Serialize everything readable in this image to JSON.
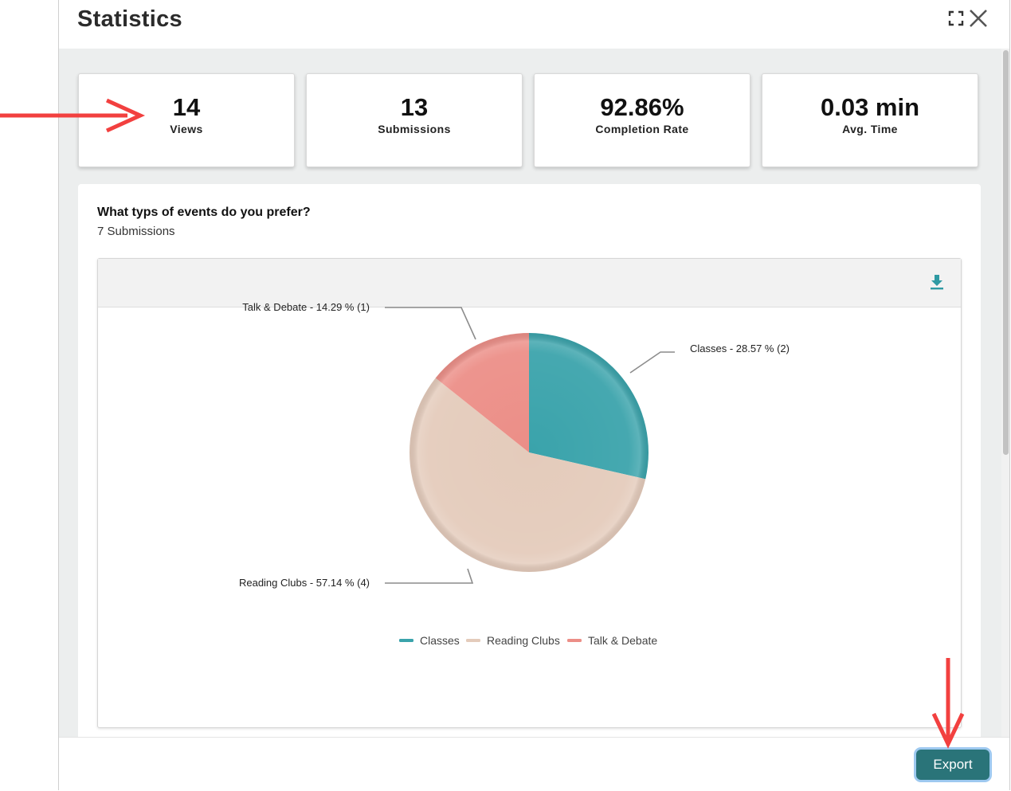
{
  "modal": {
    "title": "Statistics",
    "icons": {
      "expand": "expand-icon",
      "close": "close-icon"
    }
  },
  "stats": [
    {
      "value": "14",
      "label": "Views"
    },
    {
      "value": "13",
      "label": "Submissions"
    },
    {
      "value": "92.86%",
      "label": "Completion Rate"
    },
    {
      "value": "0.03 min",
      "label": "Avg. Time"
    }
  ],
  "question": {
    "title": "What typs of events do you prefer?",
    "submissions": "7 Submissions"
  },
  "toolbar": {
    "download_icon": "download-icon"
  },
  "chart_data": {
    "type": "pie",
    "categories": [
      "Classes",
      "Reading Clubs",
      "Talk & Debate"
    ],
    "values": [
      2,
      4,
      1
    ],
    "percents": [
      28.57,
      57.14,
      14.29
    ],
    "data_labels": [
      "Classes - 28.57 % (2)",
      "Reading Clubs - 57.14 % (4)",
      "Talk & Debate - 14.29 % (1)"
    ],
    "colors": [
      "#3aa3ab",
      "#e4cbbb",
      "#ec8e87"
    ],
    "legend_placement": "bottom-center"
  },
  "footer": {
    "export_label": "Export"
  },
  "annotations": {
    "arrow_color": "#f2403f"
  }
}
